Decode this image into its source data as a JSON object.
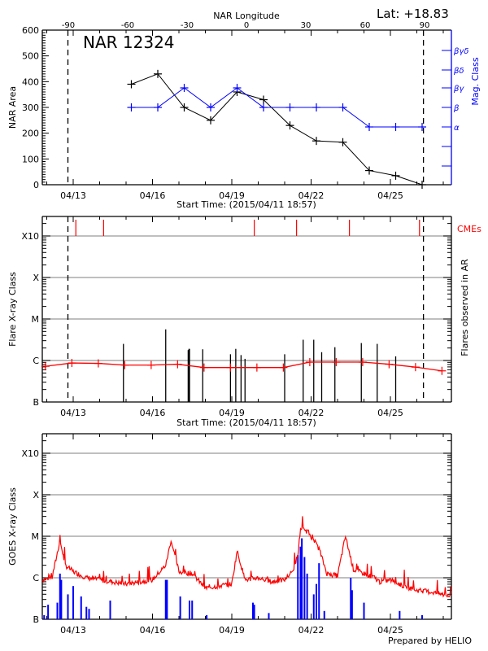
{
  "header": {
    "latitude_label": "Lat: +18.83",
    "footer_credit": "Prepared by HELIO"
  },
  "chart_data": [
    {
      "id": "nar-area-panel",
      "type": "line",
      "title": "NAR 12324",
      "xlabel": "Start Time: (2015/04/11 18:57)",
      "ylabel": "NAR Area",
      "y2label": "Mag. Class",
      "top_axis_label": "NAR Longitude",
      "top_axis_ticks": [
        "-90",
        "-60",
        "-30",
        "0",
        "30",
        "60",
        "90"
      ],
      "x_tick_labels": [
        "04/13",
        "04/16",
        "04/19",
        "04/22",
        "04/25"
      ],
      "ylim": [
        0,
        600
      ],
      "y_ticks": [
        0,
        100,
        200,
        300,
        400,
        500,
        600
      ],
      "y2_tick_labels": [
        "α",
        "β",
        "βγ",
        "βδ",
        "βγδ"
      ],
      "limb_markers_day": [
        -0.2,
        13.25
      ],
      "series": [
        {
          "name": "NAR Area",
          "color": "#000000",
          "x_day": [
            2.2,
            3.2,
            4.2,
            5.2,
            6.2,
            7.2,
            8.2,
            9.2,
            10.2,
            11.2,
            12.2,
            13.2
          ],
          "values": [
            390,
            430,
            300,
            250,
            360,
            330,
            230,
            170,
            165,
            55,
            35,
            0
          ]
        },
        {
          "name": "Mag. Class",
          "color": "#0000ff",
          "x_day": [
            2.2,
            3.2,
            4.2,
            5.2,
            6.2,
            7.2,
            8.2,
            9.2,
            10.2,
            11.2,
            12.2,
            13.2
          ],
          "class_index": [
            1,
            1,
            2,
            1,
            2,
            1,
            1,
            1,
            1,
            0,
            0,
            0
          ]
        }
      ]
    },
    {
      "id": "flare-class-panel",
      "type": "bar",
      "xlabel": "Start Time: (2015/04/11 18:57)",
      "ylabel": "Flare X-ray Class",
      "y2label": "Flares observed in AR",
      "cme_label": "CMEs",
      "x_tick_labels": [
        "04/13",
        "04/16",
        "04/19",
        "04/22",
        "04/25"
      ],
      "y_tick_labels": [
        "B",
        "C",
        "M",
        "X",
        "X10"
      ],
      "limb_markers_day": [
        -0.2,
        13.25
      ],
      "cme_times_day": [
        0.1,
        1.15,
        6.85,
        8.45,
        10.45,
        13.1
      ],
      "flares": {
        "color": "#000000",
        "x_day": [
          1.9,
          3.5,
          4.35,
          4.38,
          4.4,
          4.9,
          5.95,
          6.15,
          6.35,
          6.5,
          8.0,
          8.7,
          9.1,
          9.4,
          9.9,
          10.9,
          11.5,
          12.2
        ],
        "log_class": [
          -5.6,
          -5.25,
          -5.75,
          -5.72,
          -5.72,
          -5.73,
          -5.85,
          -5.72,
          -5.87,
          -5.96,
          -5.85,
          -5.5,
          -5.5,
          -5.8,
          -5.68,
          -5.58,
          -5.6,
          -5.9
        ]
      },
      "background": {
        "name": "Background flux",
        "color": "#ff0000",
        "x_day": [
          -1.05,
          -0.05,
          0.95,
          1.95,
          2.95,
          3.95,
          4.95,
          5.95,
          6.95,
          7.95,
          8.95,
          9.95,
          10.95,
          11.95,
          12.95,
          13.95
        ],
        "log_class": [
          -6.14,
          -6.06,
          -6.07,
          -6.11,
          -6.11,
          -6.09,
          -6.17,
          -6.17,
          -6.17,
          -6.17,
          -6.04,
          -6.04,
          -6.04,
          -6.09,
          -6.16,
          -6.25
        ]
      }
    },
    {
      "id": "goes-xray-panel",
      "type": "line",
      "ylabel": "GOES X-ray Class",
      "x_tick_labels": [
        "04/13",
        "04/16",
        "04/19",
        "04/22",
        "04/25"
      ],
      "y_tick_labels": [
        "B",
        "C",
        "M",
        "X",
        "X10"
      ],
      "series": [
        {
          "name": "GOES long channel",
          "color": "#ff0000",
          "x_day": [
            -1.2,
            -0.8,
            -0.6,
            -0.5,
            -0.3,
            0.0,
            0.5,
            1.0,
            1.5,
            2.0,
            2.5,
            3.0,
            3.5,
            3.7,
            4.0,
            4.5,
            5.0,
            5.5,
            6.0,
            6.2,
            6.5,
            7.0,
            7.5,
            8.0,
            8.3,
            8.5,
            8.6,
            8.9,
            9.3,
            9.6,
            10.0,
            10.3,
            10.6,
            11.0,
            11.4,
            11.6,
            12.0,
            12.5,
            13.0,
            13.6,
            14.3
          ],
          "log_class": [
            -6.05,
            -6.0,
            -5.4,
            -5.1,
            -5.7,
            -5.85,
            -6.0,
            -6.05,
            -6.1,
            -6.15,
            -6.1,
            -6.05,
            -5.7,
            -5.1,
            -5.85,
            -5.9,
            -6.25,
            -6.2,
            -6.15,
            -5.35,
            -6.05,
            -6.0,
            -6.1,
            -6.05,
            -5.85,
            -5.45,
            -4.8,
            -4.9,
            -5.3,
            -5.9,
            -5.95,
            -5.0,
            -5.8,
            -5.9,
            -6.0,
            -6.1,
            -6.05,
            -6.2,
            -6.3,
            -6.35,
            -6.45
          ]
        },
        {
          "name": "GOES short channel",
          "color": "#0000ff",
          "x_day": [
            -1.1,
            -0.95,
            -0.6,
            -0.5,
            -0.45,
            -0.2,
            0.0,
            0.3,
            0.5,
            0.6,
            1.4,
            3.5,
            3.55,
            4.05,
            4.4,
            4.5,
            5.05,
            6.8,
            6.85,
            7.4,
            8.5,
            8.6,
            8.65,
            8.75,
            8.85,
            9.1,
            9.2,
            9.3,
            9.5,
            10.5,
            10.55,
            11.0,
            12.35,
            13.2
          ],
          "log_class": [
            -6.9,
            -6.65,
            -6.6,
            -5.9,
            -6.05,
            -6.4,
            -6.2,
            -6.45,
            -6.7,
            -6.75,
            -6.55,
            -6.05,
            -6.05,
            -6.45,
            -6.55,
            -6.55,
            -6.9,
            -6.6,
            -6.65,
            -6.85,
            -5.45,
            -5.25,
            -5.05,
            -5.5,
            -5.9,
            -6.4,
            -6.15,
            -5.65,
            -6.8,
            -6.0,
            -6.3,
            -6.6,
            -6.8,
            -6.9
          ]
        }
      ]
    }
  ]
}
